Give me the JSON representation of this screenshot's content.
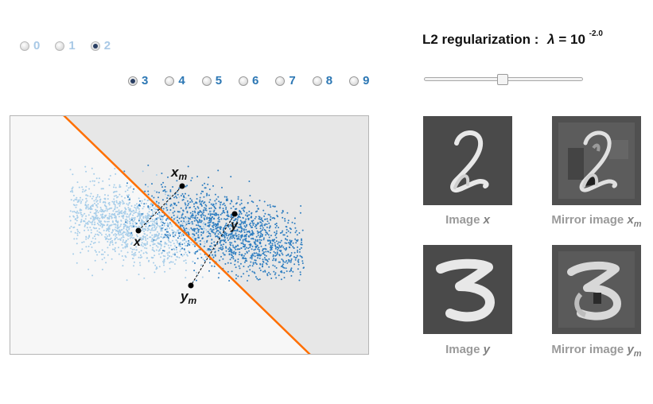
{
  "digit_selector_top": {
    "options": [
      {
        "label": "0",
        "checked": false
      },
      {
        "label": "1",
        "checked": false
      },
      {
        "label": "2",
        "checked": true
      }
    ]
  },
  "digit_selector_bottom": {
    "options": [
      {
        "label": "3",
        "checked": true
      },
      {
        "label": "4",
        "checked": false
      },
      {
        "label": "5",
        "checked": false
      },
      {
        "label": "6",
        "checked": false
      },
      {
        "label": "7",
        "checked": false
      },
      {
        "label": "8",
        "checked": false
      },
      {
        "label": "9",
        "checked": false
      }
    ]
  },
  "regularization": {
    "label": "L2 regularization :",
    "lambda_symbol": "λ",
    "equals_base": "= 10",
    "exponent": "-2.0",
    "slider_fraction": 0.5
  },
  "plot": {
    "labels": {
      "x": "x",
      "xm": "x",
      "xm_sub": "m",
      "y": "y",
      "ym": "y",
      "ym_sub": "m"
    },
    "colors": {
      "class_a": "#a6cde9",
      "class_b": "#2f7ec0",
      "boundary": "#ff6f00",
      "region_a_bg": "#f7f7f7",
      "region_b_bg": "#e7e7e7"
    }
  },
  "images": {
    "image_x": {
      "caption_prefix": "Image",
      "caption_var": "x",
      "caption_sub": ""
    },
    "mirror_x": {
      "caption_prefix": "Mirror image",
      "caption_var": "x",
      "caption_sub": "m"
    },
    "image_y": {
      "caption_prefix": "Image",
      "caption_var": "y",
      "caption_sub": ""
    },
    "mirror_y": {
      "caption_prefix": "Mirror image",
      "caption_var": "y",
      "caption_sub": "m"
    }
  }
}
